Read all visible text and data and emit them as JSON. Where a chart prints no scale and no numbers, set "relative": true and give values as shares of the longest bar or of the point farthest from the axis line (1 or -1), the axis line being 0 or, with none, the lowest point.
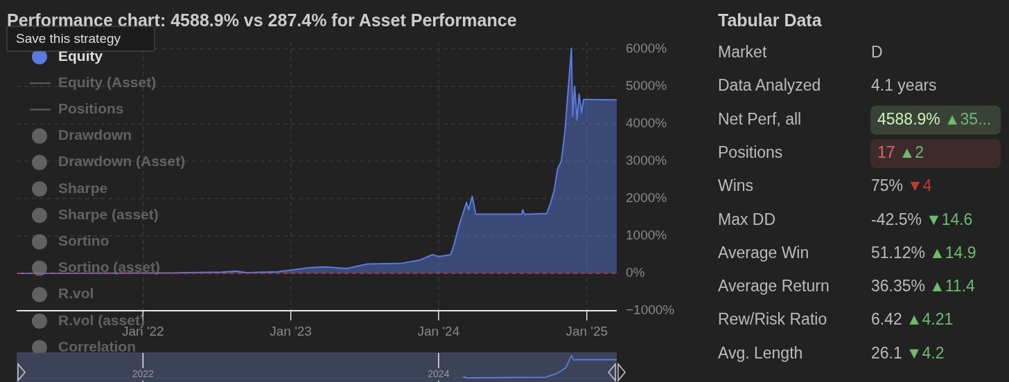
{
  "chart_data": [
    {
      "type": "area",
      "title": "Performance chart: 4588.9% vs 287.4% for Asset Performance",
      "annotations": [
        "Save this strategy"
      ],
      "x": [
        "2021-02-25",
        "2022-03-17",
        "2022-07-15",
        "2022-08-19",
        "2022-09-13",
        "2022-11-29",
        "2023-01-19",
        "2023-02-14",
        "2023-03-29",
        "2023-05-19",
        "2023-07-09",
        "2023-10-02",
        "2023-11-14",
        "2023-12-17",
        "2024-01-01",
        "2024-01-31",
        "2024-02-09",
        "2024-02-21",
        "2024-03-01",
        "2024-03-10",
        "2024-03-15",
        "2024-03-24",
        "2024-04-02",
        "2024-07-24",
        "2024-07-27",
        "2024-07-31",
        "2024-09-24",
        "2024-10-04",
        "2024-10-12",
        "2024-10-21",
        "2024-10-30",
        "2024-11-08",
        "2024-11-13",
        "2024-11-24",
        "2024-11-27",
        "2024-12-02",
        "2024-12-08",
        "2024-12-13",
        "2024-12-19",
        "2024-12-24",
        "2025-03-16"
      ],
      "series": [
        {
          "name": "Equity",
          "color": "#5b7be0",
          "values": [
            0,
            10,
            30,
            60,
            20,
            40,
            110,
            150,
            170,
            130,
            250,
            270,
            350,
            500,
            450,
            500,
            800,
            1300,
            1600,
            1900,
            1700,
            2060,
            1580,
            1580,
            1700,
            1580,
            1600,
            1900,
            2200,
            2800,
            3000,
            3800,
            4500,
            6020,
            4200,
            5000,
            4100,
            4800,
            4300,
            4650,
            4640
          ]
        },
        {
          "name": "Equity (Asset)",
          "type": "line",
          "color": "#777777",
          "values": [
            null,
            null,
            null,
            null,
            null,
            null,
            null,
            null,
            null,
            null,
            null,
            null,
            null,
            null,
            null,
            null,
            null,
            null,
            null,
            null,
            null,
            null,
            null,
            null,
            null,
            null,
            null,
            null,
            null,
            null,
            null,
            null,
            null,
            null,
            null,
            null,
            null,
            null,
            null,
            null,
            null
          ]
        },
        {
          "name": "Positions",
          "type": "line",
          "color": "#777777",
          "values": [
            null,
            null,
            null,
            null,
            null,
            null,
            null,
            null,
            null,
            null,
            null,
            null,
            null,
            null,
            null,
            null,
            null,
            null,
            null,
            null,
            null,
            null,
            null,
            null,
            null,
            null,
            null,
            null,
            null,
            null,
            null,
            null,
            null,
            null,
            null,
            null,
            null,
            null,
            null,
            null,
            null
          ]
        },
        {
          "name": "Drawdown",
          "type": "scatter",
          "color": "#777777",
          "values": [
            null,
            null,
            null,
            null,
            null,
            null,
            null,
            null,
            null,
            null,
            null,
            null,
            null,
            null,
            null,
            null,
            null,
            null,
            null,
            null,
            null,
            null,
            null,
            null,
            null,
            null,
            null,
            null,
            null,
            null,
            null,
            null,
            null,
            null,
            null,
            null,
            null,
            null,
            null,
            null,
            null
          ]
        },
        {
          "name": "Drawdown (Asset)",
          "type": "scatter",
          "color": "#777777",
          "values": [
            null,
            null,
            null,
            null,
            null,
            null,
            null,
            null,
            null,
            null,
            null,
            null,
            null,
            null,
            null,
            null,
            null,
            null,
            null,
            null,
            null,
            null,
            null,
            null,
            null,
            null,
            null,
            null,
            null,
            null,
            null,
            null,
            null,
            null,
            null,
            null,
            null,
            null,
            null,
            null,
            null
          ]
        },
        {
          "name": "Sharpe",
          "type": "scatter",
          "color": "#777777",
          "values": [
            null,
            null,
            null,
            null,
            null,
            null,
            null,
            null,
            null,
            null,
            null,
            null,
            null,
            null,
            null,
            null,
            null,
            null,
            null,
            null,
            null,
            null,
            null,
            null,
            null,
            null,
            null,
            null,
            null,
            null,
            null,
            null,
            null,
            null,
            null,
            null,
            null,
            null,
            null,
            null,
            null
          ]
        },
        {
          "name": "Sharpe (asset)",
          "type": "scatter",
          "color": "#777777",
          "values": [
            null,
            null,
            null,
            null,
            null,
            null,
            null,
            null,
            null,
            null,
            null,
            null,
            null,
            null,
            null,
            null,
            null,
            null,
            null,
            null,
            null,
            null,
            null,
            null,
            null,
            null,
            null,
            null,
            null,
            null,
            null,
            null,
            null,
            null,
            null,
            null,
            null,
            null,
            null,
            null,
            null
          ]
        },
        {
          "name": "Sortino",
          "type": "scatter",
          "color": "#777777",
          "values": [
            null,
            null,
            null,
            null,
            null,
            null,
            null,
            null,
            null,
            null,
            null,
            null,
            null,
            null,
            null,
            null,
            null,
            null,
            null,
            null,
            null,
            null,
            null,
            null,
            null,
            null,
            null,
            null,
            null,
            null,
            null,
            null,
            null,
            null,
            null,
            null,
            null,
            null,
            null,
            null,
            null
          ]
        },
        {
          "name": "Sortino (asset)",
          "type": "scatter",
          "color": "#777777",
          "values": [
            null,
            null,
            null,
            null,
            null,
            null,
            null,
            null,
            null,
            null,
            null,
            null,
            null,
            null,
            null,
            null,
            null,
            null,
            null,
            null,
            null,
            null,
            null,
            null,
            null,
            null,
            null,
            null,
            null,
            null,
            null,
            null,
            null,
            null,
            null,
            null,
            null,
            null,
            null,
            null,
            null
          ]
        },
        {
          "name": "R.vol",
          "type": "scatter",
          "color": "#777777",
          "values": [
            null,
            null,
            null,
            null,
            null,
            null,
            null,
            null,
            null,
            null,
            null,
            null,
            null,
            null,
            null,
            null,
            null,
            null,
            null,
            null,
            null,
            null,
            null,
            null,
            null,
            null,
            null,
            null,
            null,
            null,
            null,
            null,
            null,
            null,
            null,
            null,
            null,
            null,
            null,
            null,
            null
          ]
        },
        {
          "name": "R.vol (asset)",
          "type": "scatter",
          "color": "#777777",
          "values": [
            null,
            null,
            null,
            null,
            null,
            null,
            null,
            null,
            null,
            null,
            null,
            null,
            null,
            null,
            null,
            null,
            null,
            null,
            null,
            null,
            null,
            null,
            null,
            null,
            null,
            null,
            null,
            null,
            null,
            null,
            null,
            null,
            null,
            null,
            null,
            null,
            null,
            null,
            null,
            null,
            null
          ]
        },
        {
          "name": "Correlation",
          "type": "scatter",
          "color": "#777777",
          "values": [
            null,
            null,
            null,
            null,
            null,
            null,
            null,
            null,
            null,
            null,
            null,
            null,
            null,
            null,
            null,
            null,
            null,
            null,
            null,
            null,
            null,
            null,
            null,
            null,
            null,
            null,
            null,
            null,
            null,
            null,
            null,
            null,
            null,
            null,
            null,
            null,
            null,
            null,
            null,
            null,
            null
          ]
        }
      ],
      "xlim": [
        "2021-02-23",
        "2025-03-16"
      ],
      "xticks": [
        {
          "value": "2022-01-01",
          "label": "Jan '22"
        },
        {
          "value": "2023-01-01",
          "label": "Jan '23"
        },
        {
          "value": "2024-01-01",
          "label": "Jan '24"
        },
        {
          "value": "2025-01-01",
          "label": "Jan '25"
        }
      ],
      "ylim": [
        -1000,
        6200
      ],
      "yticks": [
        {
          "value": -1000,
          "label": "−1000%"
        },
        {
          "value": 0,
          "label": "0%"
        },
        {
          "value": 1000,
          "label": "1000%"
        },
        {
          "value": 2000,
          "label": "2000%"
        },
        {
          "value": 3000,
          "label": "3000%"
        },
        {
          "value": 4000,
          "label": "4000%"
        },
        {
          "value": 5000,
          "label": "5000%"
        },
        {
          "value": 6000,
          "label": "6000%"
        }
      ],
      "ref_lines": [
        {
          "axis": "y",
          "value": 0,
          "color": "#c0392b",
          "line_style": "dashed"
        }
      ],
      "grid": true,
      "legend": "left"
    },
    {
      "type": "line",
      "relative": true,
      "x": [
        "2024-03-02",
        "2024-03-05",
        "2024-03-08",
        "2024-04-05",
        "2024-09-20",
        "2024-10-20",
        "2024-11-10",
        "2024-11-24",
        "2024-11-30",
        "2024-12-10",
        "2025-03-16"
      ],
      "series": [
        {
          "color": "#5b7be0",
          "values": [
            0.02,
            0.05,
            0,
            0,
            0.03,
            0.2,
            0.45,
            1,
            0.8,
            0.82,
            0.82
          ]
        }
      ],
      "xlim": [
        "2021-02-23",
        "2025-03-16"
      ],
      "xticks": [
        {
          "value": "2022-01-01",
          "label": "2022"
        },
        {
          "value": "2024-01-01",
          "label": "2024"
        }
      ],
      "tick_labels": "x"
    },
    {
      "type": "other",
      "title": "Tabular Data",
      "categories": [
        "Market",
        "Data Analyzed",
        "Net Perf, all",
        "Positions",
        "Wins",
        "Max DD",
        "Average Win",
        "Average Return",
        "Rew/Risk Ratio",
        "Avg. Length"
      ],
      "value_labels": [
        "D",
        "4.1 years",
        "4588.9%",
        "17",
        "75%",
        "-42.5%",
        "51.12%",
        "36.35%",
        "6.42",
        "26.1"
      ],
      "annotations": [
        "▲35...",
        "▲2",
        "▼4",
        "▼14.6",
        "▲14.9",
        "▲11.4",
        "▲4.21",
        "▼4.2"
      ],
      "colors": [
        "#bbbbbb",
        "#bbbbbb",
        "#c8f5b8",
        "#e06666",
        "#bbbbbb",
        "#bbbbbb",
        "#bbbbbb",
        "#bbbbbb",
        "#bbbbbb",
        "#bbbbbb",
        "#6dbb6d",
        "#6dbb6d",
        "#c0392b",
        "#6dbb6d",
        "#6dbb6d",
        "#6dbb6d",
        "#6dbb6d",
        "#6dbb6d"
      ]
    }
  ]
}
